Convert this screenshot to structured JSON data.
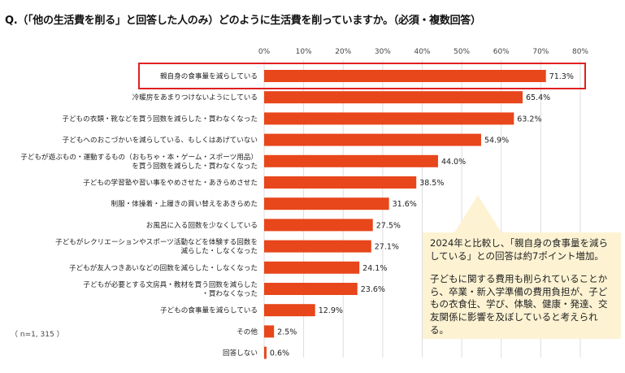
{
  "title": "Q.（「他の生活費を削る」と回答した人のみ）どのように生活費を削っていますか。（必須・複数回答）",
  "sample_note": "（ n=1, 315 ）",
  "colors": {
    "bar": "#e8461b",
    "highlight_border": "#e02020",
    "callout_bg": "#fdf3d3",
    "grid": "#dddddd"
  },
  "callout": {
    "para1": "2024年と比較し、「親自身の食事量を減らしている」との回答は約7ポイント増加。",
    "para2": "子どもに関する費用も削られていることから、卒業・新入学準備の費用負担が、子どもの衣食住、学び、体験、健康・発達、交友関係に影響を及ぼしていると考えられる。"
  },
  "chart_data": {
    "type": "bar",
    "orientation": "horizontal",
    "title": "Q.（「他の生活費を削る」と回答した人のみ）どのように生活費を削っていますか。（必須・複数回答）",
    "xlim": [
      0,
      80
    ],
    "tick_labels": [
      "0%",
      "10%",
      "20%",
      "30%",
      "40%",
      "50%",
      "60%",
      "70%",
      "80%"
    ],
    "categories": [
      [
        "親自身の食事量を減らしている"
      ],
      [
        "冷暖房をあまりつけないようにしている"
      ],
      [
        "子どもの衣類・靴などを買う回数を減らした・買わなくなった"
      ],
      [
        "子どもへのおこづかいを減らしている、もしくはあげていない"
      ],
      [
        "子どもが遊ぶもの・運動するもの（おもちゃ・本・ゲーム・スポーツ用品）",
        "を買う回数を減らした・買わなくなった"
      ],
      [
        "子どもの学習塾や習い事をやめさせた・あきらめさせた"
      ],
      [
        "制服・体操着・上履きの買い替えをあきらめた"
      ],
      [
        "お風呂に入る回数を少なくしている"
      ],
      [
        "子どもがレクリエーションやスポーツ活動などを体験する回数を",
        "減らした・しなくなった"
      ],
      [
        "子どもが友人つきあいなどの回数を減らした・しなくなった"
      ],
      [
        "子どもが必要とする文房具・教材を買う回数を減らした",
        "・買わなくなった"
      ],
      [
        "子どもの食事量を減らしている"
      ],
      [
        "その他"
      ],
      [
        "回答しない"
      ]
    ],
    "values": [
      71.3,
      65.4,
      63.2,
      54.9,
      44.0,
      38.5,
      31.6,
      27.5,
      27.1,
      24.1,
      23.6,
      12.9,
      2.5,
      0.6
    ],
    "value_labels": [
      "71.3%",
      "65.4%",
      "63.2%",
      "54.9%",
      "44.0%",
      "38.5%",
      "31.6%",
      "27.5%",
      "27.1%",
      "24.1%",
      "23.6%",
      "12.9%",
      "2.5%",
      "0.6%"
    ],
    "highlighted_index": 0,
    "grid": true,
    "legend": "none"
  }
}
